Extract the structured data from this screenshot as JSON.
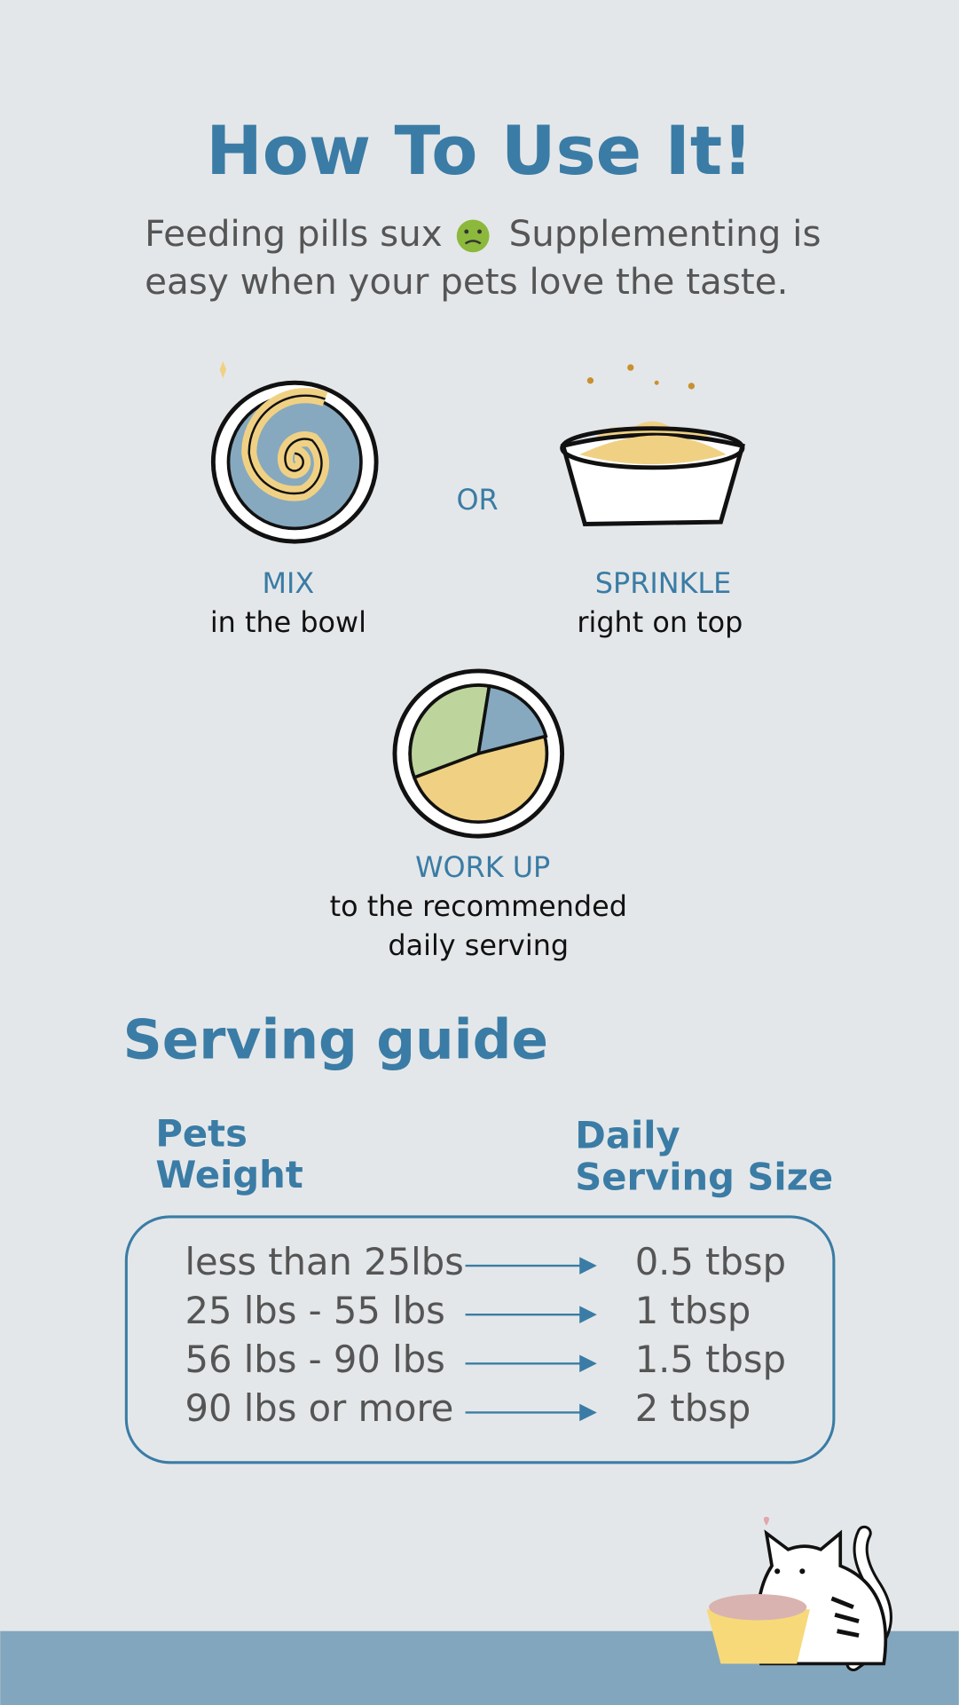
{
  "header": {
    "title": "How To Use It!",
    "subtitle": [
      "Feeding pills sux",
      "Supplementing is",
      "easy  when your pets love the taste."
    ]
  },
  "steps": {
    "mix": {
      "title": "MIX",
      "text": "in the bowl"
    },
    "or": "OR",
    "sprinkle": {
      "title": "SPRINKLE",
      "text": "right on top"
    },
    "work_up": {
      "title": "WORK UP",
      "text": [
        "to the recommended",
        "daily serving"
      ]
    }
  },
  "serving_guide": {
    "title": "Serving guide",
    "headers": [
      [
        "Pets",
        "Weight"
      ],
      [
        "Daily",
        "Serving Size"
      ]
    ],
    "rows": [
      [
        "less than 25lbs",
        "0.5 tbsp"
      ],
      [
        "25 lbs - 55 lbs",
        "1 tbsp"
      ],
      [
        "56 lbs - 90 lbs",
        "1.5 tbsp"
      ],
      [
        "90 lbs or more",
        "2 tbsp"
      ]
    ]
  }
}
